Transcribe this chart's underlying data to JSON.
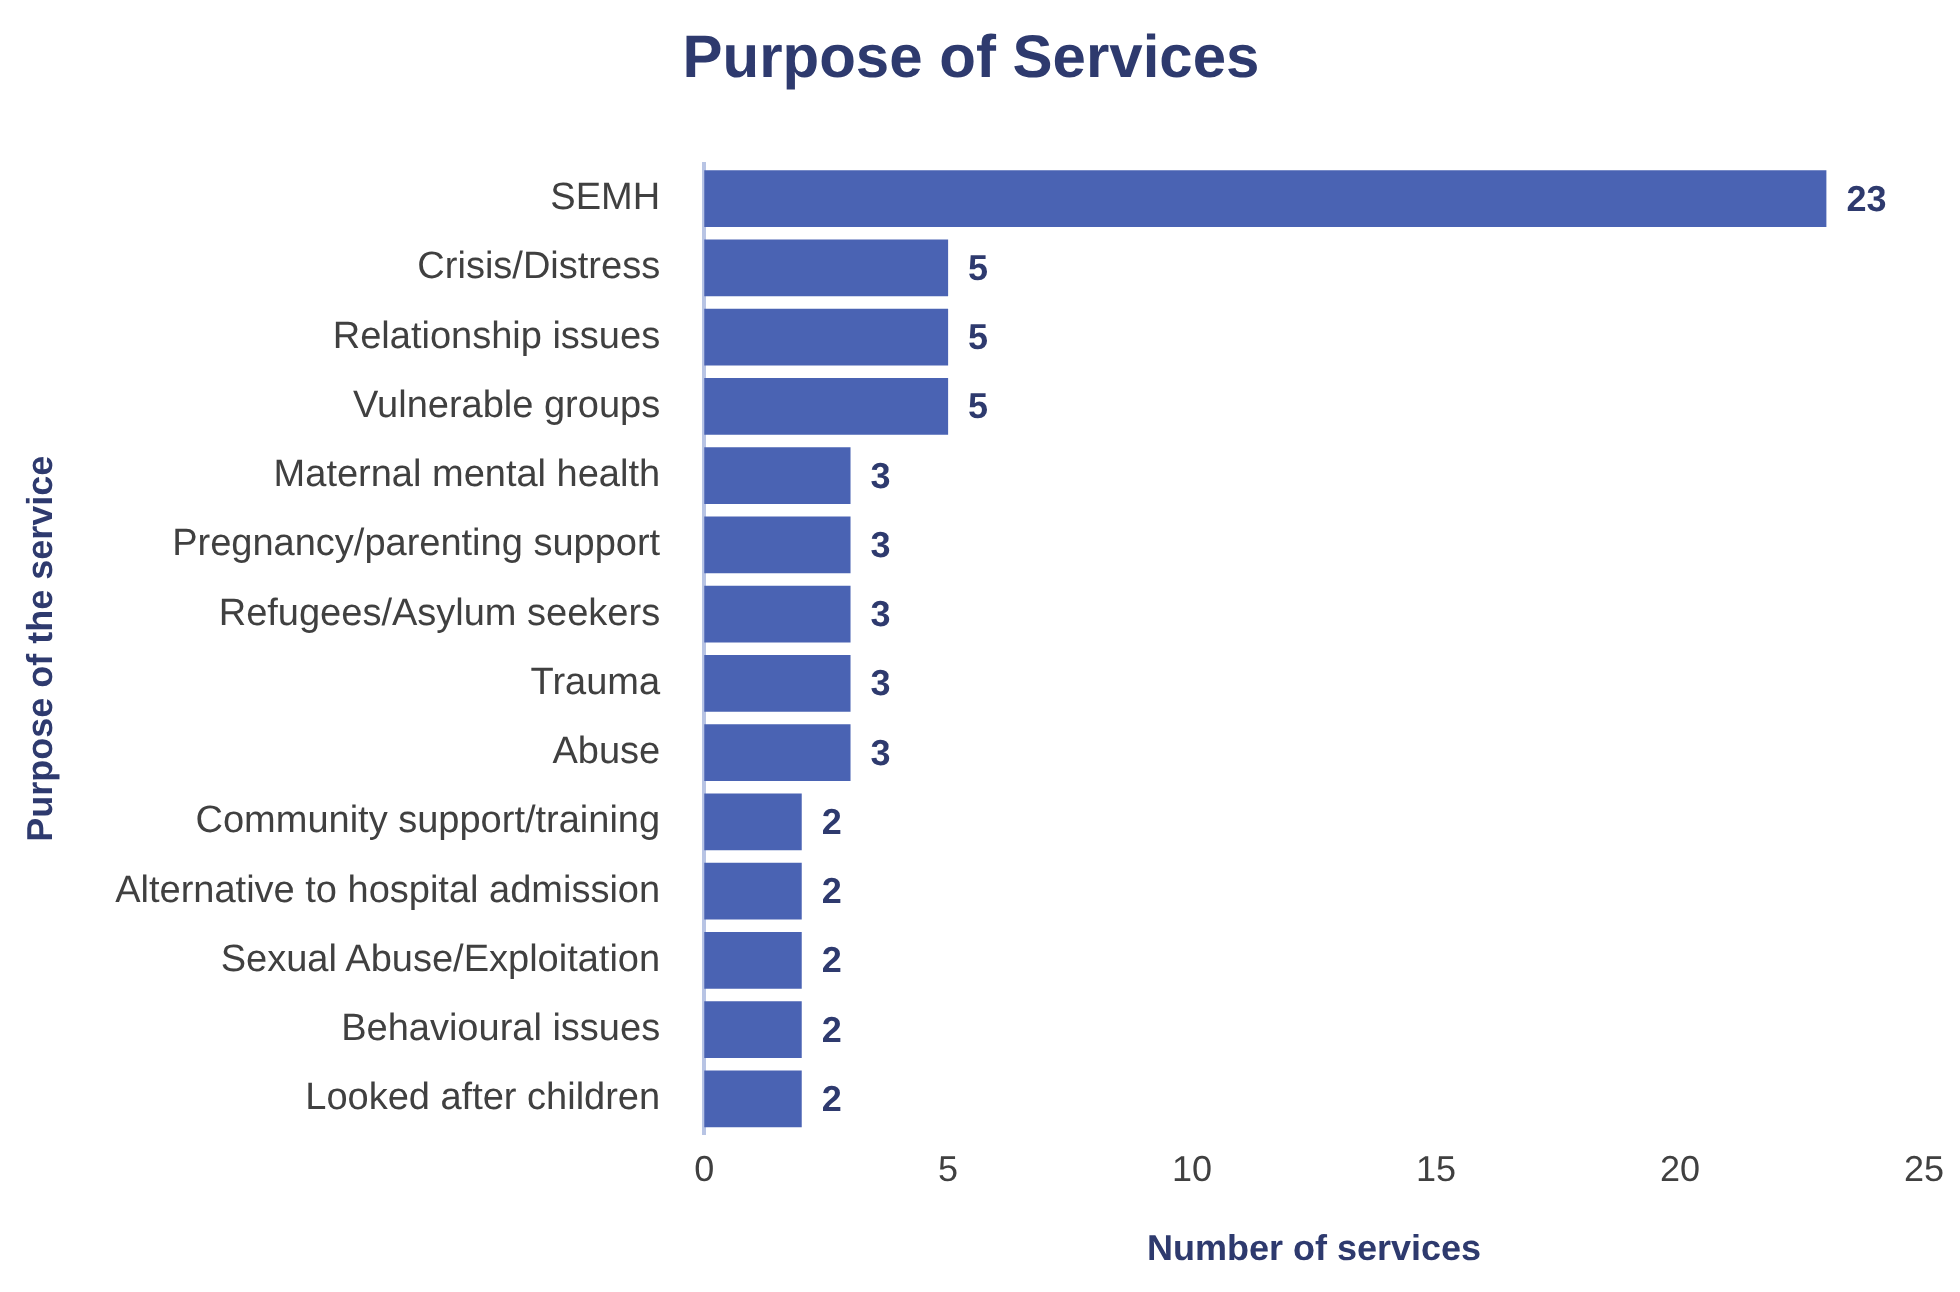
{
  "chart_data": {
    "type": "bar",
    "orientation": "horizontal",
    "title": "Purpose of Services",
    "xlabel": "Number of services",
    "ylabel": "Purpose of the service",
    "categories": [
      "SEMH",
      "Crisis/Distress",
      "Relationship issues",
      "Vulnerable groups",
      "Maternal mental health",
      "Pregnancy/parenting support",
      "Refugees/Asylum seekers",
      "Trauma",
      "Abuse",
      "Community support/training",
      "Alternative to hospital admission",
      "Sexual Abuse/Exploitation",
      "Behavioural issues",
      "Looked after children"
    ],
    "values": [
      23,
      5,
      5,
      5,
      3,
      3,
      3,
      3,
      3,
      2,
      2,
      2,
      2,
      2
    ],
    "color": "#4a63b3",
    "xlim": [
      0,
      25
    ],
    "xticks": [
      0,
      5,
      10,
      15,
      20,
      25
    ],
    "grid": false,
    "legend": false,
    "data_labels": true
  }
}
